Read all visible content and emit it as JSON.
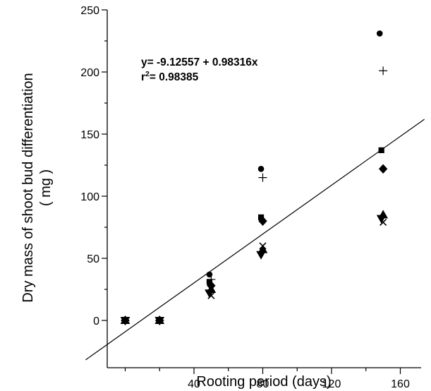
{
  "chart_data": {
    "type": "scatter",
    "title": "",
    "xlabel": "Rooting period (days)",
    "ylabel_line1": "Dry mass of shoot bud differentiation",
    "ylabel_line2": "( mg )",
    "xlim": [
      -20,
      165
    ],
    "ylim": [
      -40,
      250
    ],
    "xticks": [
      40,
      80,
      120,
      160
    ],
    "xminor": [
      0,
      20,
      60,
      100,
      140
    ],
    "yticks": [
      0,
      50,
      100,
      150,
      200,
      250
    ],
    "yminor": [
      25,
      75,
      125,
      175,
      225
    ],
    "fit": {
      "equation": "y= -9.12557 + 0.98316x",
      "r2_prefix": "r",
      "r2_exp": "2",
      "r2_value": "= 0.98385",
      "intercept": -9.12557,
      "slope": 0.98316
    },
    "series": [
      {
        "marker": "circle",
        "points": [
          [
            0,
            0
          ],
          [
            20,
            0
          ],
          [
            49,
            37
          ],
          [
            79,
            122
          ],
          [
            148,
            231
          ]
        ]
      },
      {
        "marker": "plus",
        "points": [
          [
            0,
            0
          ],
          [
            20,
            0
          ],
          [
            50,
            33
          ],
          [
            80,
            115
          ],
          [
            150,
            201
          ]
        ]
      },
      {
        "marker": "square",
        "points": [
          [
            0,
            0
          ],
          [
            20,
            0
          ],
          [
            49,
            31
          ],
          [
            79,
            83
          ],
          [
            149,
            137
          ]
        ]
      },
      {
        "marker": "diamond",
        "points": [
          [
            0,
            0
          ],
          [
            20,
            0
          ],
          [
            50,
            28
          ],
          [
            80,
            80
          ],
          [
            150,
            122
          ]
        ]
      },
      {
        "marker": "triangle-up",
        "points": [
          [
            0,
            0
          ],
          [
            20,
            0
          ],
          [
            50,
            25
          ],
          [
            80,
            57
          ],
          [
            150,
            85
          ]
        ]
      },
      {
        "marker": "triangle-down",
        "points": [
          [
            0,
            0
          ],
          [
            20,
            0
          ],
          [
            49,
            22
          ],
          [
            79,
            53
          ],
          [
            149,
            82
          ]
        ]
      },
      {
        "marker": "cross",
        "points": [
          [
            0,
            0
          ],
          [
            20,
            0
          ],
          [
            50,
            20
          ],
          [
            80,
            60
          ],
          [
            150,
            79
          ]
        ]
      }
    ]
  }
}
